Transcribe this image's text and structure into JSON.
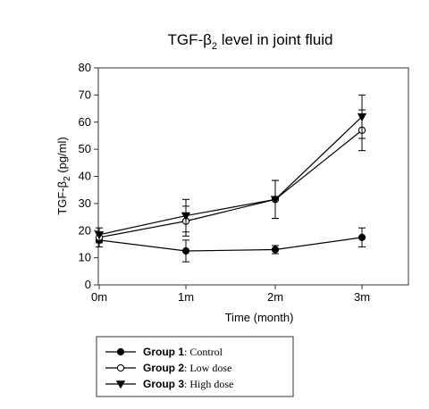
{
  "chart_data": {
    "type": "line",
    "title": {
      "main": "TGF-",
      "symbol": "β",
      "sub": "2",
      "rest": " level in joint fluid"
    },
    "ylabel": {
      "main": "TGF-",
      "symbol": "β",
      "sub": "2",
      "rest": " (pg/ml)"
    },
    "xlabel": "Time (month)",
    "categories": [
      "0m",
      "1m",
      "2m",
      "3m"
    ],
    "ylim": [
      0,
      80
    ],
    "yticks": [
      "0",
      "10",
      "20",
      "30",
      "40",
      "50",
      "60",
      "70",
      "80"
    ],
    "grid": false,
    "legend_position": "bottom-left",
    "series": [
      {
        "name": "Group 1",
        "description": ": Control",
        "marker": "filled-circle",
        "values": [
          16.5,
          12.5,
          13,
          17.5
        ],
        "errors": [
          2.5,
          4,
          1.5,
          3.5
        ]
      },
      {
        "name": "Group 2",
        "description": ": Low dose",
        "marker": "open-circle",
        "values": [
          17.5,
          23.5,
          31.5,
          57
        ],
        "errors": [
          2,
          5.5,
          7,
          7.5
        ]
      },
      {
        "name": "Group 3",
        "description": ": High dose",
        "marker": "filled-triangle-down",
        "values": [
          18.5,
          25.5,
          31.5,
          62
        ],
        "errors": [
          2.5,
          6,
          7,
          8
        ]
      }
    ]
  }
}
